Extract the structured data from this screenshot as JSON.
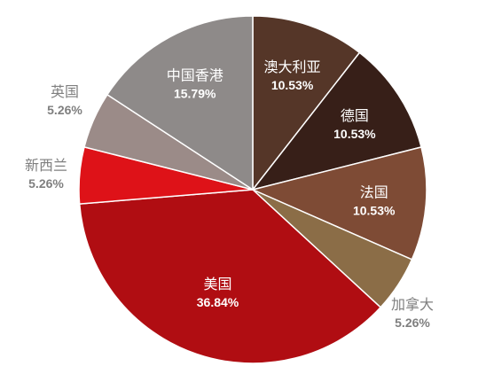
{
  "chart_data": {
    "type": "pie",
    "title": "",
    "start_angle_deg": 0,
    "direction": "clockwise",
    "slices": [
      {
        "label": "澳大利亚",
        "value": 10.53,
        "value_label": "10.53%",
        "color": "#553628",
        "text_color": "#ffffff",
        "label_placement": "inside"
      },
      {
        "label": "德国",
        "value": 10.53,
        "value_label": "10.53%",
        "color": "#371f18",
        "text_color": "#ffffff",
        "label_placement": "inside"
      },
      {
        "label": "法国",
        "value": 10.53,
        "value_label": "10.53%",
        "color": "#7e4b35",
        "text_color": "#ffffff",
        "label_placement": "inside"
      },
      {
        "label": "加拿大",
        "value": 5.26,
        "value_label": "5.26%",
        "color": "#8b6d47",
        "text_color": "#7f7f7f",
        "label_placement": "outside"
      },
      {
        "label": "美国",
        "value": 36.84,
        "value_label": "36.84%",
        "color": "#b00d12",
        "text_color": "#ffffff",
        "label_placement": "inside"
      },
      {
        "label": "新西兰",
        "value": 5.26,
        "value_label": "5.26%",
        "color": "#de1218",
        "text_color": "#7f7f7f",
        "label_placement": "outside"
      },
      {
        "label": "英国",
        "value": 5.26,
        "value_label": "5.26%",
        "color": "#9b8b88",
        "text_color": "#7f7f7f",
        "label_placement": "outside"
      },
      {
        "label": "中国香港",
        "value": 15.79,
        "value_label": "15.79%",
        "color": "#8e8a89",
        "text_color": "#ffffff",
        "label_placement": "inside"
      }
    ]
  }
}
